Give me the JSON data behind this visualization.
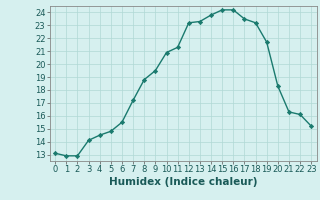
{
  "x": [
    0,
    1,
    2,
    3,
    4,
    5,
    6,
    7,
    8,
    9,
    10,
    11,
    12,
    13,
    14,
    15,
    16,
    17,
    18,
    19,
    20,
    21,
    22,
    23
  ],
  "y": [
    13.1,
    12.9,
    12.9,
    14.1,
    14.5,
    14.8,
    15.5,
    17.2,
    18.8,
    19.5,
    20.9,
    21.3,
    23.2,
    23.3,
    23.8,
    24.2,
    24.2,
    23.5,
    23.2,
    21.7,
    18.3,
    16.3,
    16.1,
    15.2
  ],
  "line_color": "#1a7a6e",
  "marker": "D",
  "marker_size": 2.2,
  "bg_color": "#d6f0ef",
  "grid_color": "#b0d8d5",
  "xlabel": "Humidex (Indice chaleur)",
  "ylim": [
    12.5,
    24.5
  ],
  "xlim": [
    -0.5,
    23.5
  ],
  "yticks": [
    13,
    14,
    15,
    16,
    17,
    18,
    19,
    20,
    21,
    22,
    23,
    24
  ],
  "xticks": [
    0,
    1,
    2,
    3,
    4,
    5,
    6,
    7,
    8,
    9,
    10,
    11,
    12,
    13,
    14,
    15,
    16,
    17,
    18,
    19,
    20,
    21,
    22,
    23
  ],
  "tick_fontsize": 6,
  "label_fontsize": 7.5,
  "linewidth": 1.0,
  "spine_color": "#888888"
}
